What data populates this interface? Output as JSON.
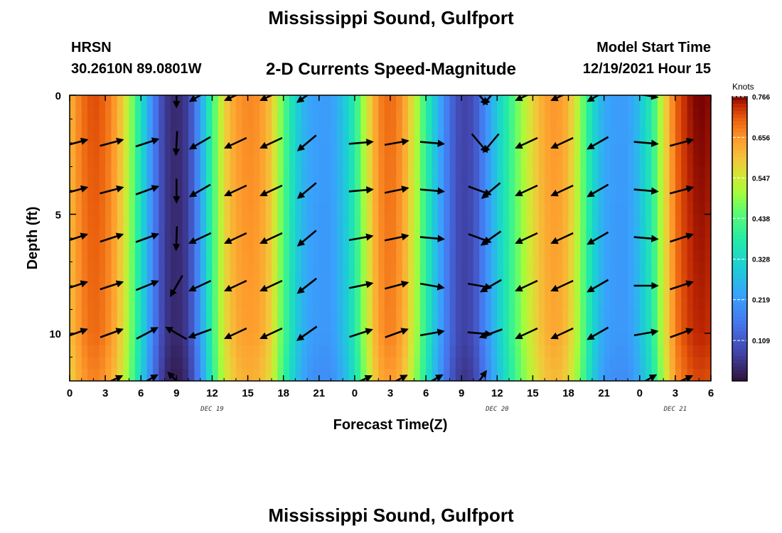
{
  "header": {
    "title": "Mississippi Sound, Gulfport",
    "station": "HRSN",
    "coords": "30.2610N  89.0801W",
    "product": "2-D Currents Speed-Magnitude",
    "model_label": "Model Start Time",
    "model_time": "12/19/2021 Hour 15"
  },
  "footer": {
    "title": "Mississippi Sound, Gulfport"
  },
  "chart_data": {
    "type": "heatmap",
    "xlabel": "Forecast Time(Z)",
    "ylabel": "Depth (ft)",
    "x_tick_labels": [
      "0",
      "3",
      "6",
      "9",
      "12",
      "15",
      "18",
      "21",
      "0",
      "3",
      "6",
      "9",
      "12",
      "15",
      "18",
      "21",
      "0",
      "3",
      "6"
    ],
    "y_tick_labels": [
      "0",
      "5",
      "10"
    ],
    "y_ticks": [
      0,
      5,
      10
    ],
    "ylim": [
      0,
      12
    ],
    "date_labels": [
      {
        "label": "DEC 19",
        "hour": 12
      },
      {
        "label": "DEC 20",
        "hour": 36
      },
      {
        "label": "DEC 21",
        "hour": 51
      }
    ],
    "xlim_hours": [
      0,
      54
    ],
    "colorbar": {
      "unit": "Knots",
      "min": 0.0,
      "max": 0.766,
      "tick_labels": [
        "0.766",
        "0.656",
        "0.547",
        "0.438",
        "0.328",
        "0.219",
        "0.109"
      ],
      "tick_values": [
        0.766,
        0.656,
        0.547,
        0.438,
        0.328,
        0.219,
        0.109
      ]
    },
    "speed_profile": {
      "hours": [
        0,
        1,
        2,
        3,
        4,
        5,
        6,
        7,
        8,
        9,
        10,
        11,
        12,
        13,
        14,
        15,
        16,
        17,
        18,
        19,
        20,
        21,
        22,
        23,
        24,
        25,
        26,
        27,
        28,
        29,
        30,
        31,
        32,
        33,
        34,
        35,
        36,
        37,
        38,
        39,
        40,
        41,
        42,
        43,
        44,
        45,
        46,
        47,
        48,
        49,
        50,
        51,
        52,
        53,
        54
      ],
      "speed": [
        0.62,
        0.69,
        0.72,
        0.7,
        0.64,
        0.52,
        0.35,
        0.18,
        0.06,
        0.03,
        0.07,
        0.22,
        0.42,
        0.58,
        0.65,
        0.67,
        0.66,
        0.6,
        0.45,
        0.32,
        0.24,
        0.22,
        0.22,
        0.28,
        0.38,
        0.55,
        0.67,
        0.7,
        0.66,
        0.55,
        0.4,
        0.26,
        0.14,
        0.07,
        0.09,
        0.19,
        0.3,
        0.4,
        0.5,
        0.58,
        0.64,
        0.66,
        0.62,
        0.5,
        0.34,
        0.24,
        0.22,
        0.22,
        0.28,
        0.38,
        0.56,
        0.7,
        0.75,
        0.77,
        0.76
      ]
    },
    "vectors": {
      "depths": [
        0,
        2,
        4,
        6,
        8,
        10,
        12
      ],
      "columns": [
        {
          "hour": 0.5,
          "dir": [
            null,
            75,
            75,
            72,
            72,
            70,
            null
          ]
        },
        {
          "hour": 3.5,
          "dir": [
            null,
            75,
            75,
            72,
            72,
            70,
            65
          ]
        },
        {
          "hour": 6.5,
          "dir": [
            null,
            72,
            70,
            70,
            68,
            62,
            60
          ]
        },
        {
          "hour": 9.0,
          "dir": [
            180,
            183,
            180,
            182,
            210,
            300,
            315
          ]
        },
        {
          "hour": 11.0,
          "dir": [
            240,
            240,
            240,
            245,
            245,
            250,
            null
          ]
        },
        {
          "hour": 14.0,
          "dir": [
            245,
            245,
            245,
            245,
            245,
            245,
            null
          ]
        },
        {
          "hour": 17.0,
          "dir": [
            245,
            245,
            245,
            245,
            245,
            245,
            null
          ]
        },
        {
          "hour": 20.0,
          "dir": [
            235,
            230,
            230,
            230,
            232,
            235,
            null
          ]
        },
        {
          "hour": 24.5,
          "dir": [
            null,
            85,
            85,
            80,
            78,
            72,
            65
          ]
        },
        {
          "hour": 27.5,
          "dir": [
            null,
            80,
            78,
            78,
            75,
            70,
            62
          ]
        },
        {
          "hour": 30.5,
          "dir": [
            null,
            95,
            95,
            95,
            100,
            80,
            60
          ]
        },
        {
          "hour": 34.5,
          "dir": [
            140,
            140,
            110,
            110,
            100,
            95,
            35
          ]
        },
        {
          "hour": 35.5,
          "dir": [
            220,
            220,
            230,
            235,
            240,
            250,
            null
          ]
        },
        {
          "hour": 38.5,
          "dir": [
            245,
            245,
            245,
            245,
            245,
            245,
            null
          ]
        },
        {
          "hour": 41.5,
          "dir": [
            245,
            245,
            245,
            245,
            245,
            245,
            null
          ]
        },
        {
          "hour": 44.5,
          "dir": [
            240,
            240,
            240,
            240,
            240,
            240,
            null
          ]
        },
        {
          "hour": 48.5,
          "dir": [
            100,
            95,
            95,
            95,
            90,
            80,
            60
          ]
        },
        {
          "hour": 51.5,
          "dir": [
            null,
            75,
            75,
            72,
            72,
            70,
            65
          ]
        }
      ]
    }
  }
}
